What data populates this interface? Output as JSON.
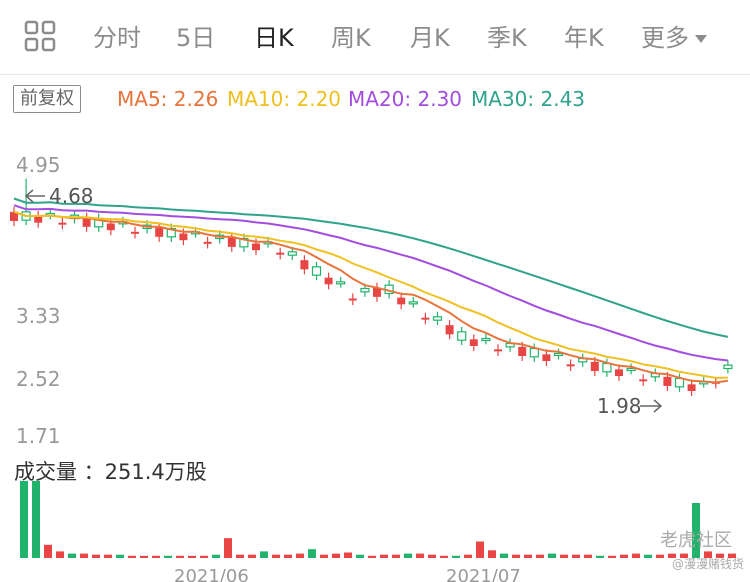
{
  "tabs": [
    "分时",
    "5日",
    "日K",
    "周K",
    "月K",
    "季K",
    "年K",
    "更多"
  ],
  "active_tab": "日K",
  "adjust_label": "前复权",
  "ma": [
    {
      "label": "MA5: 2.26",
      "color": "#e8743b"
    },
    {
      "label": "MA10: 2.20",
      "color": "#f0c020"
    },
    {
      "label": "MA20: 2.30",
      "color": "#a24de0"
    },
    {
      "label": "MA30: 2.43",
      "color": "#2fa38c"
    }
  ],
  "price_axis": [
    "4.95",
    "3.33",
    "2.52",
    "1.71"
  ],
  "max_label": "4.68",
  "min_label": "1.98",
  "volume_label": "成交量 ：251.4万股",
  "date_labels": [
    "2021/06",
    "2021/07"
  ],
  "watermark": "老虎社区",
  "watermark_sub": "@漫漫赌钱货",
  "colors": {
    "up": "#e84545",
    "down": "#21b36b"
  }
}
